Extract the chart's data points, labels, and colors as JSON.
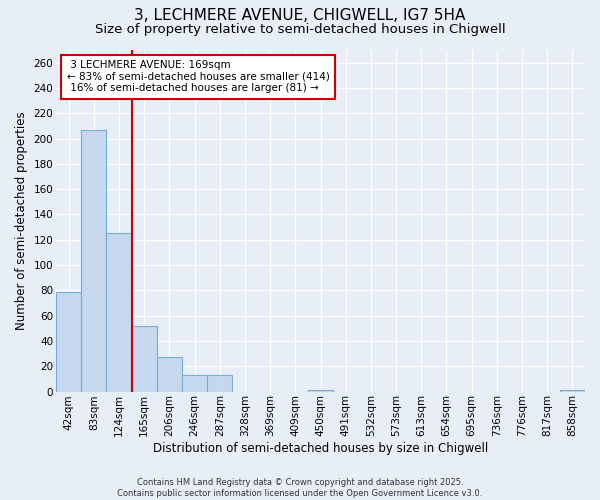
{
  "title_line1": "3, LECHMERE AVENUE, CHIGWELL, IG7 5HA",
  "title_line2": "Size of property relative to semi-detached houses in Chigwell",
  "xlabel": "Distribution of semi-detached houses by size in Chigwell",
  "ylabel": "Number of semi-detached properties",
  "categories": [
    "42sqm",
    "83sqm",
    "124sqm",
    "165sqm",
    "206sqm",
    "246sqm",
    "287sqm",
    "328sqm",
    "369sqm",
    "409sqm",
    "450sqm",
    "491sqm",
    "532sqm",
    "573sqm",
    "613sqm",
    "654sqm",
    "695sqm",
    "736sqm",
    "776sqm",
    "817sqm",
    "858sqm"
  ],
  "values": [
    79,
    207,
    125,
    52,
    27,
    13,
    13,
    0,
    0,
    0,
    1,
    0,
    0,
    0,
    0,
    0,
    0,
    0,
    0,
    0,
    1
  ],
  "bar_color": "#c5d8ee",
  "bar_edge_color": "#7aadd4",
  "vline_color": "#cc0000",
  "bg_color": "#e8eef8",
  "plot_bg_color": "#e8eef8",
  "grid_color": "#ffffff",
  "ylim": [
    0,
    270
  ],
  "yticks": [
    0,
    20,
    40,
    60,
    80,
    100,
    120,
    140,
    160,
    180,
    200,
    220,
    240,
    260
  ],
  "property_label": "3 LECHMERE AVENUE: 169sqm",
  "pct_smaller": 83,
  "count_smaller": 414,
  "pct_larger": 16,
  "count_larger": 81,
  "footer": "Contains HM Land Registry data © Crown copyright and database right 2025.\nContains public sector information licensed under the Open Government Licence v3.0.",
  "title_fontsize": 11,
  "subtitle_fontsize": 9.5,
  "axis_label_fontsize": 8.5,
  "tick_fontsize": 7.5,
  "annotation_fontsize": 7.5
}
